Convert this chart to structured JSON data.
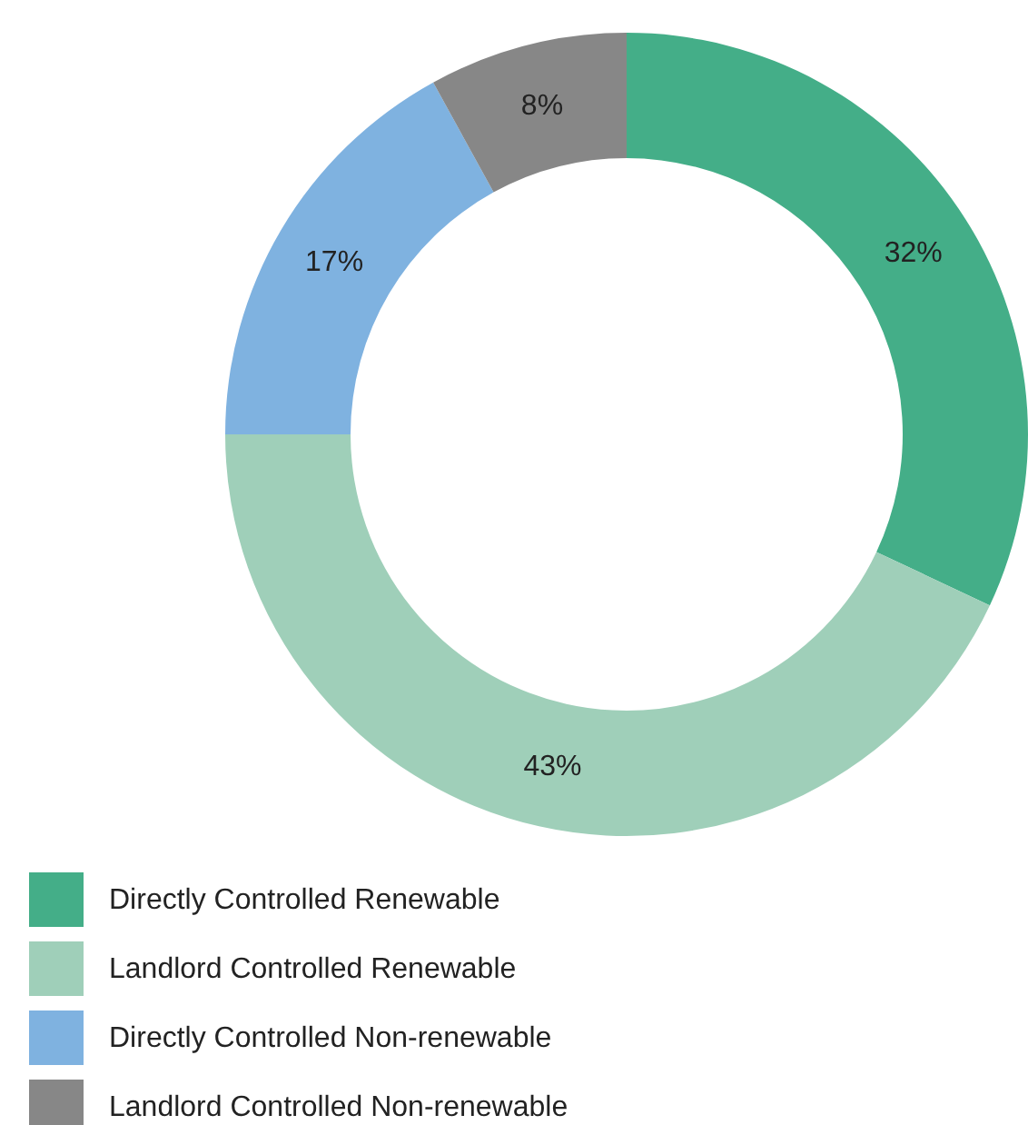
{
  "chart_data": {
    "type": "donut",
    "categories": [
      "Directly Controlled Renewable",
      "Landlord Controlled Renewable",
      "Directly Controlled Non-renewable",
      "Landlord Controlled Non-renewable"
    ],
    "values": [
      32,
      43,
      17,
      8
    ],
    "colors": [
      "#44ae88",
      "#9fcfb9",
      "#7fb2e0",
      "#878787"
    ],
    "value_labels": [
      "32%",
      "43%",
      "17%",
      "8%"
    ],
    "legend": "bottom left"
  }
}
